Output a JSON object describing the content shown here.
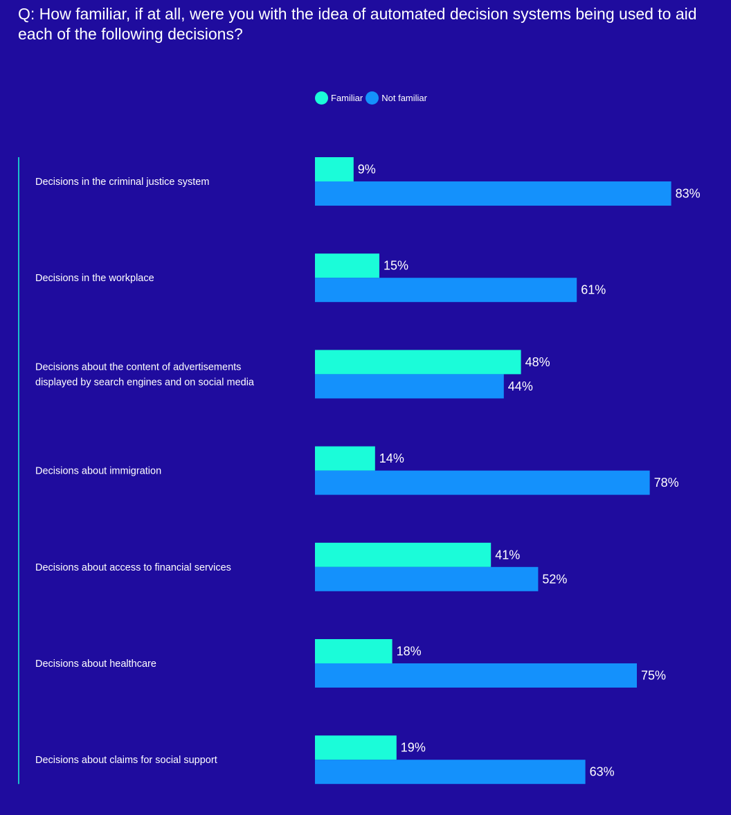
{
  "question": "Q: How familiar, if at all, were you with the idea of automated decision systems being used to aid each of the following decisions?",
  "colors": {
    "background": "#1f0c9e",
    "familiar": "#1bfcd9",
    "not_familiar": "#1491fc",
    "divider": "#1bfcd9"
  },
  "legend": {
    "familiar": "Familiar",
    "not_familiar": "Not familiar"
  },
  "chart_data": {
    "type": "bar",
    "orientation": "horizontal",
    "title": "Q: How familiar, if at all, were you with the idea of automated decision systems being used to aid each of the following decisions?",
    "categories": [
      [
        "Decisions in the criminal justice system"
      ],
      [
        "Decisions in the workplace"
      ],
      [
        "Decisions about the content of advertisements",
        "displayed by search engines and on social media"
      ],
      [
        "Decisions about immigration"
      ],
      [
        "Decisions about access to financial services"
      ],
      [
        "Decisions about healthcare"
      ],
      [
        "Decisions about claims for social support"
      ]
    ],
    "series": [
      {
        "name": "Familiar",
        "values": [
          9,
          15,
          48,
          14,
          41,
          18,
          19
        ]
      },
      {
        "name": "Not familiar",
        "values": [
          83,
          61,
          44,
          78,
          52,
          75,
          63
        ]
      }
    ],
    "value_suffix": "%",
    "xlim": [
      0,
      100
    ],
    "legend_position": "top",
    "grid": false
  }
}
